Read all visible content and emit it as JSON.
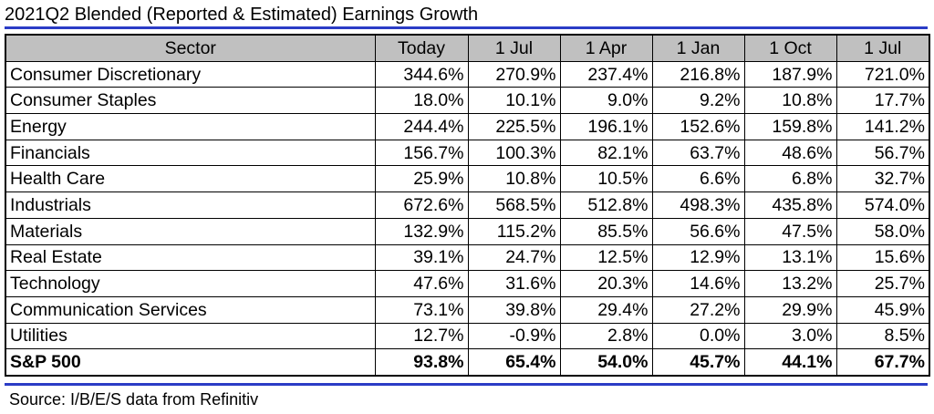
{
  "title": "2021Q2 Blended (Reported & Estimated) Earnings Growth",
  "columns": [
    "Sector",
    "Today",
    "1 Jul",
    "1 Apr",
    "1 Jan",
    "1 Oct",
    "1 Jul"
  ],
  "rows": [
    {
      "sector": "Consumer Discretionary",
      "values": [
        "344.6%",
        "270.9%",
        "237.4%",
        "216.8%",
        "187.9%",
        "721.0%"
      ]
    },
    {
      "sector": "Consumer Staples",
      "values": [
        "18.0%",
        "10.1%",
        "9.0%",
        "9.2%",
        "10.8%",
        "17.7%"
      ]
    },
    {
      "sector": "Energy",
      "values": [
        "244.4%",
        "225.5%",
        "196.1%",
        "152.6%",
        "159.8%",
        "141.2%"
      ]
    },
    {
      "sector": "Financials",
      "values": [
        "156.7%",
        "100.3%",
        "82.1%",
        "63.7%",
        "48.6%",
        "56.7%"
      ]
    },
    {
      "sector": "Health Care",
      "values": [
        "25.9%",
        "10.8%",
        "10.5%",
        "6.6%",
        "6.8%",
        "32.7%"
      ]
    },
    {
      "sector": "Industrials",
      "values": [
        "672.6%",
        "568.5%",
        "512.8%",
        "498.3%",
        "435.8%",
        "574.0%"
      ]
    },
    {
      "sector": "Materials",
      "values": [
        "132.9%",
        "115.2%",
        "85.5%",
        "56.6%",
        "47.5%",
        "58.0%"
      ]
    },
    {
      "sector": "Real Estate",
      "values": [
        "39.1%",
        "24.7%",
        "12.5%",
        "12.9%",
        "13.1%",
        "15.6%"
      ]
    },
    {
      "sector": "Technology",
      "values": [
        "47.6%",
        "31.6%",
        "20.3%",
        "14.6%",
        "13.2%",
        "25.7%"
      ]
    },
    {
      "sector": "Communication Services",
      "values": [
        "73.1%",
        "39.8%",
        "29.4%",
        "27.2%",
        "29.9%",
        "45.9%"
      ]
    },
    {
      "sector": "Utilities",
      "values": [
        "12.7%",
        "-0.9%",
        "2.8%",
        "0.0%",
        "3.0%",
        "8.5%"
      ]
    },
    {
      "sector": "S&P 500",
      "values": [
        "93.8%",
        "65.4%",
        "54.0%",
        "45.7%",
        "44.1%",
        "67.7%"
      ],
      "total": true
    }
  ],
  "source": "Source: I/B/E/S data from Refinitiv",
  "colors": {
    "rule": "#2b3cc6",
    "header_bg": "#c0c0c0"
  }
}
